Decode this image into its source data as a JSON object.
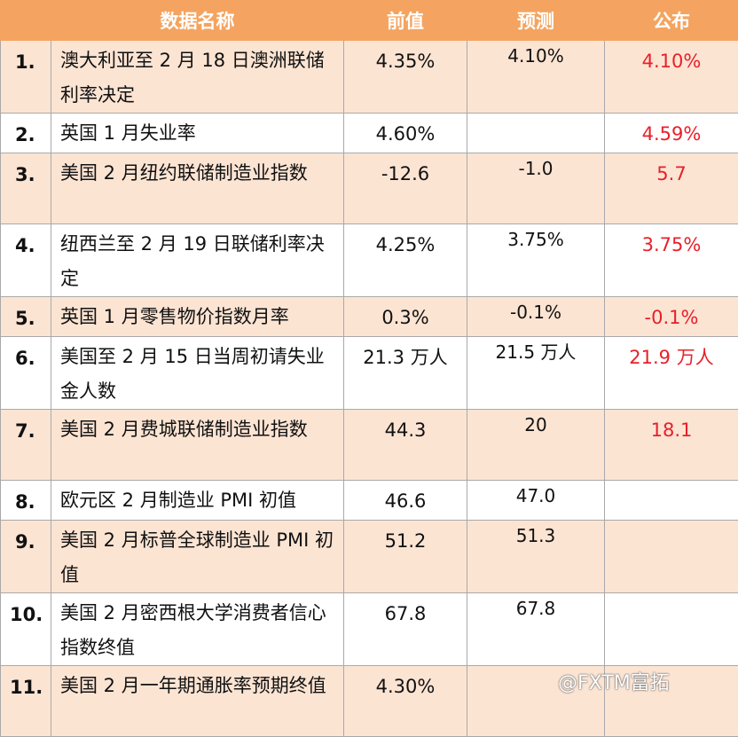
{
  "headers": {
    "blank": "",
    "name": "数据名称",
    "prev": "前值",
    "forecast": "预测",
    "published": "公布"
  },
  "rows": [
    {
      "no": "1.",
      "name": "澳大利亚至 2 月 18 日澳洲联储利率决定",
      "prev": "4.35%",
      "forecast": "4.10%",
      "published": "4.10%"
    },
    {
      "no": "2.",
      "name": "英国 1 月失业率",
      "prev": "4.60%",
      "forecast": "",
      "published": "4.59%"
    },
    {
      "no": "3.",
      "name": "美国 2 月纽约联储制造业指数",
      "prev": "-12.6",
      "forecast": "-1.0",
      "published": "5.7"
    },
    {
      "no": "4.",
      "name": "纽西兰至 2 月 19 日联储利率决定",
      "prev": "4.25%",
      "forecast": "3.75%",
      "published": "3.75%"
    },
    {
      "no": "5.",
      "name": "英国 1 月零售物价指数月率",
      "prev": "0.3%",
      "forecast": "-0.1%",
      "published": "-0.1%"
    },
    {
      "no": "6.",
      "name": "美国至 2 月 15 日当周初请失业金人数",
      "prev": "21.3 万人",
      "forecast": "21.5 万人",
      "published": "21.9 万人"
    },
    {
      "no": "7.",
      "name": "美国 2 月费城联储制造业指数",
      "prev": "44.3",
      "forecast": "20",
      "published": "18.1"
    },
    {
      "no": "8.",
      "name": "欧元区 2 月制造业 PMI 初值",
      "prev": "46.6",
      "forecast": "47.0",
      "published": ""
    },
    {
      "no": "9.",
      "name": "美国 2 月标普全球制造业 PMI 初值",
      "prev": "51.2",
      "forecast": "51.3",
      "published": ""
    },
    {
      "no": "10.",
      "name": "美国 2 月密西根大学消费者信心指数终值",
      "prev": "67.8",
      "forecast": "67.8",
      "published": ""
    },
    {
      "no": "11.",
      "name": "美国 2 月一年期通胀率预期终值",
      "prev": "4.30%",
      "forecast": "",
      "published": ""
    }
  ],
  "watermark": "@FXTM富拓",
  "colors": {
    "header_bg": "#f4a460",
    "row_tint": "#fce4d3",
    "published_text": "#e8202a"
  }
}
